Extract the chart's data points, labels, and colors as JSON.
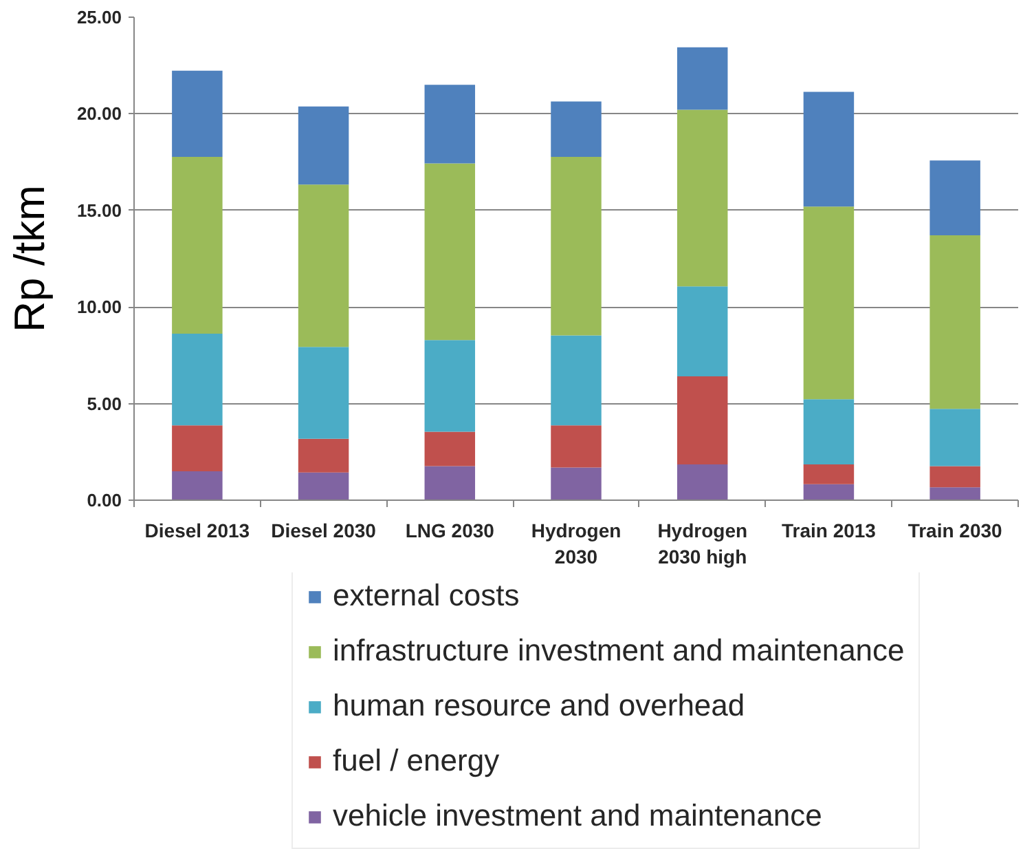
{
  "chart_data": {
    "type": "bar",
    "stacked": true,
    "ylabel": "Rp /tkm",
    "categories": [
      "Diesel 2013",
      "Diesel 2030",
      "LNG 2030",
      "Hydrogen 2030",
      "Hydrogen 2030 high",
      "Train 2013",
      "Train 2030"
    ],
    "series": [
      {
        "name": "vehicle investment and maintenance",
        "color": "#8064a2",
        "values": [
          1.5,
          1.43,
          1.76,
          1.69,
          1.85,
          0.83,
          0.67
        ]
      },
      {
        "name": "fuel / energy",
        "color": "#c0504d",
        "values": [
          2.37,
          1.75,
          1.78,
          2.18,
          4.56,
          1.02,
          1.09
        ]
      },
      {
        "name": "human resource and overhead",
        "color": "#4bacc6",
        "values": [
          4.75,
          4.75,
          4.75,
          4.66,
          4.66,
          3.38,
          2.97
        ]
      },
      {
        "name": "infrastructure investment and maintenance",
        "color": "#9bbb59",
        "values": [
          9.15,
          8.41,
          9.14,
          9.24,
          9.14,
          9.97,
          8.98
        ]
      },
      {
        "name": "external costs",
        "color": "#4f81bd",
        "values": [
          4.46,
          4.04,
          4.07,
          2.87,
          3.23,
          5.94,
          3.87
        ]
      }
    ],
    "ylim": [
      0,
      25
    ],
    "yticks": [
      {
        "value": 0,
        "label": "0.00"
      },
      {
        "value": 5,
        "label": "5.00"
      },
      {
        "value": 10,
        "label": "10.00"
      },
      {
        "value": 15,
        "label": "15.00"
      },
      {
        "value": 20,
        "label": "20.00"
      },
      {
        "value": 25,
        "label": "25.00"
      }
    ],
    "grid": "y",
    "legend": "bottom"
  }
}
